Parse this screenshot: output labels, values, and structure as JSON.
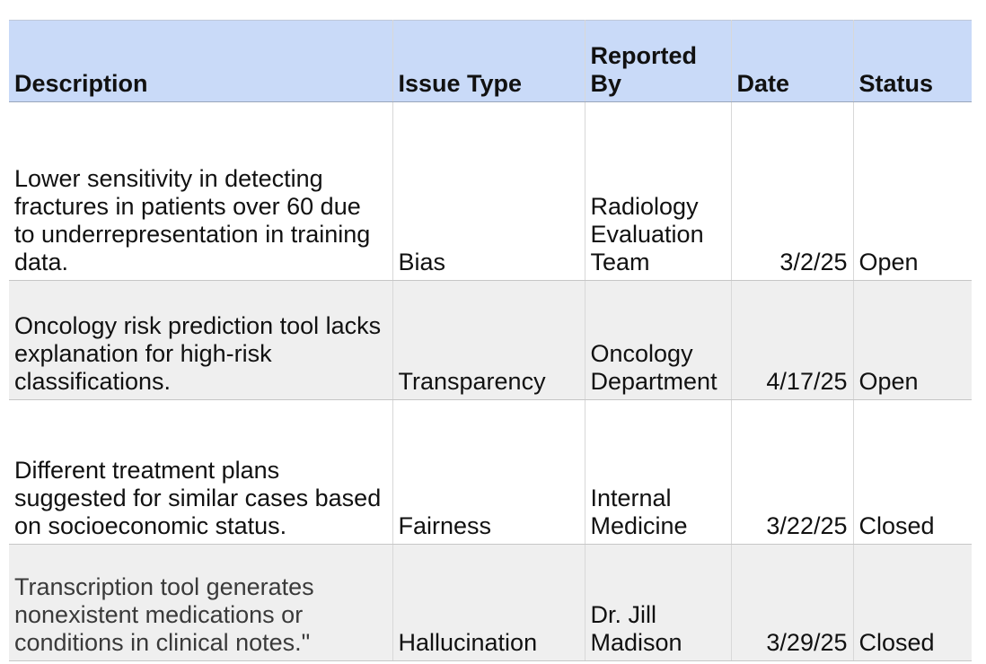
{
  "table": {
    "headers": [
      "Description",
      "Issue Type",
      "Reported By",
      "Date",
      "Status"
    ],
    "rows": [
      {
        "description": "Lower sensitivity in detecting fractures in patients over 60 due to underrepresentation in training data.",
        "issue_type": "Bias",
        "reported_by": "Radiology Evaluation Team",
        "date": "3/2/25",
        "status": "Open"
      },
      {
        "description": "Oncology risk prediction tool lacks explanation for high-risk classifications.",
        "issue_type": "Transparency",
        "reported_by": "Oncology Department",
        "date": "4/17/25",
        "status": "Open"
      },
      {
        "description": "Different treatment plans suggested for similar cases based on socioeconomic status.",
        "issue_type": "Fairness",
        "reported_by": "Internal Medicine",
        "date": "3/22/25",
        "status": "Closed"
      },
      {
        "description": "Transcription tool generates nonexistent medications or conditions in clinical notes.\"",
        "issue_type": "Hallucination",
        "reported_by": "Dr. Jill Madison",
        "date": "3/29/25",
        "status": "Closed"
      }
    ]
  }
}
